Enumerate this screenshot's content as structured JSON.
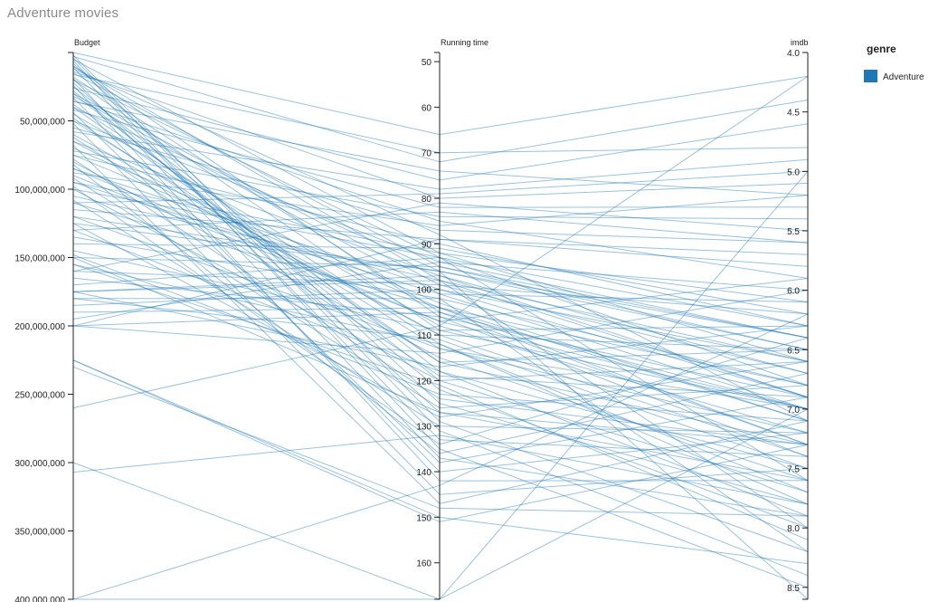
{
  "title": "Adventure movies",
  "chart_data": {
    "type": "parallel-coordinates",
    "title": "Adventure movies",
    "axes": [
      {
        "name": "Budget",
        "range": [
          0,
          400000000
        ],
        "inverted": false,
        "ticks": [
          "50,000,000",
          "100,000,000",
          "150,000,000",
          "200,000,000",
          "250,000,000",
          "300,000,000",
          "350,000,000",
          "400,000,000"
        ],
        "tick_values": [
          50000000,
          100000000,
          150000000,
          200000000,
          250000000,
          300000000,
          350000000,
          400000000
        ]
      },
      {
        "name": "Running time",
        "range": [
          48,
          168
        ],
        "inverted": false,
        "ticks": [
          "50",
          "60",
          "70",
          "80",
          "90",
          "100",
          "110",
          "120",
          "130",
          "140",
          "150",
          "160"
        ],
        "tick_values": [
          50,
          60,
          70,
          80,
          90,
          100,
          110,
          120,
          130,
          140,
          150,
          160
        ]
      },
      {
        "name": "imdb",
        "range": [
          4.0,
          8.6
        ],
        "inverted": false,
        "ticks": [
          "4.0",
          "4.5",
          "5.0",
          "5.5",
          "6.0",
          "6.5",
          "7.0",
          "7.5",
          "8.0",
          "8.5"
        ],
        "tick_values": [
          4.0,
          4.5,
          5.0,
          5.5,
          6.0,
          6.5,
          7.0,
          7.5,
          8.0,
          8.5
        ]
      }
    ],
    "legend": {
      "title": "genre",
      "entries": [
        {
          "label": "Adventure",
          "color": "#1f77b4"
        }
      ],
      "position": "top-right"
    },
    "series_color": "#1f77b4",
    "records": [
      [
        0,
        66,
        4.2
      ],
      [
        5000000,
        92,
        6.6
      ],
      [
        10000000,
        98,
        6.9
      ],
      [
        12000000,
        88,
        7.1
      ],
      [
        15000000,
        95,
        6.4
      ],
      [
        18000000,
        105,
        7.3
      ],
      [
        20000000,
        93,
        6.8
      ],
      [
        25000000,
        118,
        7.5
      ],
      [
        30000000,
        99,
        6.2
      ],
      [
        32000000,
        101,
        7.0
      ],
      [
        35000000,
        85,
        5.9
      ],
      [
        38000000,
        112,
        7.8
      ],
      [
        40000000,
        96,
        6.5
      ],
      [
        45000000,
        108,
        7.2
      ],
      [
        50000000,
        94,
        6.0
      ],
      [
        55000000,
        87,
        5.6
      ],
      [
        60000000,
        110,
        7.4
      ],
      [
        65000000,
        97,
        6.7
      ],
      [
        70000000,
        103,
        7.1
      ],
      [
        75000000,
        90,
        6.3
      ],
      [
        80000000,
        115,
        7.6
      ],
      [
        85000000,
        100,
        6.9
      ],
      [
        90000000,
        107,
        7.0
      ],
      [
        95000000,
        92,
        6.1
      ],
      [
        100000000,
        120,
        7.7
      ],
      [
        105000000,
        98,
        6.6
      ],
      [
        110000000,
        104,
        7.3
      ],
      [
        115000000,
        89,
        5.8
      ],
      [
        120000000,
        113,
        7.2
      ],
      [
        125000000,
        96,
        6.4
      ],
      [
        130000000,
        118,
        7.9
      ],
      [
        135000000,
        102,
        6.8
      ],
      [
        140000000,
        91,
        6.2
      ],
      [
        145000000,
        109,
        7.0
      ],
      [
        150000000,
        95,
        6.5
      ],
      [
        155000000,
        121,
        8.1
      ],
      [
        160000000,
        99,
        6.7
      ],
      [
        165000000,
        106,
        7.4
      ],
      [
        170000000,
        93,
        6.3
      ],
      [
        175000000,
        97,
        6.9
      ],
      [
        180000000,
        111,
        7.5
      ],
      [
        185000000,
        100,
        6.6
      ],
      [
        190000000,
        104,
        7.1
      ],
      [
        195000000,
        94,
        6.4
      ],
      [
        200000000,
        105,
        7.0
      ],
      [
        2000000,
        129,
        8.2
      ],
      [
        8000000,
        125,
        7.8
      ],
      [
        4000000,
        131,
        8.4
      ],
      [
        22000000,
        127,
        7.6
      ],
      [
        28000000,
        122,
        8.0
      ],
      [
        14000000,
        80,
        5.1
      ],
      [
        26000000,
        76,
        4.6
      ],
      [
        42000000,
        82,
        5.3
      ],
      [
        58000000,
        78,
        4.9
      ],
      [
        72000000,
        84,
        5.4
      ],
      [
        88000000,
        86,
        5.2
      ],
      [
        110000000,
        79,
        5.0
      ],
      [
        130000000,
        83,
        5.6
      ],
      [
        160000000,
        81,
        5.5
      ],
      [
        200000000,
        89,
        5.7
      ],
      [
        3000000,
        72,
        4.4
      ],
      [
        16000000,
        70,
        4.8
      ],
      [
        36000000,
        74,
        5.2
      ],
      [
        48000000,
        116,
        6.5
      ],
      [
        62000000,
        119,
        6.9
      ],
      [
        78000000,
        124,
        7.3
      ],
      [
        92000000,
        126,
        6.8
      ],
      [
        108000000,
        130,
        7.2
      ],
      [
        125000000,
        128,
        6.6
      ],
      [
        148000000,
        123,
        7.1
      ],
      [
        175000000,
        117,
        6.3
      ],
      [
        200000000,
        114,
        6.0
      ],
      [
        225000000,
        151,
        7.3
      ],
      [
        225000000,
        150,
        8.3
      ],
      [
        230000000,
        148,
        7.9
      ],
      [
        260000000,
        108,
        4.2
      ],
      [
        300000000,
        168,
        7.0
      ],
      [
        307000000,
        132,
        7.8
      ],
      [
        400000000,
        168,
        5.0
      ],
      [
        400000000,
        143,
        6.2
      ],
      [
        6000000,
        135,
        8.5
      ],
      [
        11000000,
        133,
        7.4
      ],
      [
        19000000,
        137,
        7.9
      ],
      [
        24000000,
        142,
        7.6
      ],
      [
        33000000,
        140,
        7.2
      ],
      [
        44000000,
        138,
        6.9
      ],
      [
        52000000,
        145,
        7.5
      ],
      [
        68000000,
        147,
        7.1
      ],
      [
        82000000,
        136,
        6.7
      ],
      [
        98000000,
        134,
        6.4
      ],
      [
        150000000,
        127,
        7.3
      ],
      [
        155000000,
        112,
        7.7
      ],
      [
        175000000,
        98,
        8.0
      ],
      [
        180000000,
        102,
        8.2
      ],
      [
        120000000,
        96,
        8.6
      ],
      [
        100000000,
        93,
        7.6
      ],
      [
        95000000,
        101,
        6.1
      ],
      [
        85000000,
        107,
        5.9
      ],
      [
        75000000,
        104,
        6.8
      ],
      [
        65000000,
        110,
        6.5
      ],
      [
        50000000,
        113,
        7.0
      ],
      [
        40000000,
        116,
        7.3
      ],
      [
        30000000,
        120,
        6.6
      ],
      [
        20000000,
        109,
        6.3
      ],
      [
        10000000,
        106,
        6.9
      ]
    ]
  }
}
